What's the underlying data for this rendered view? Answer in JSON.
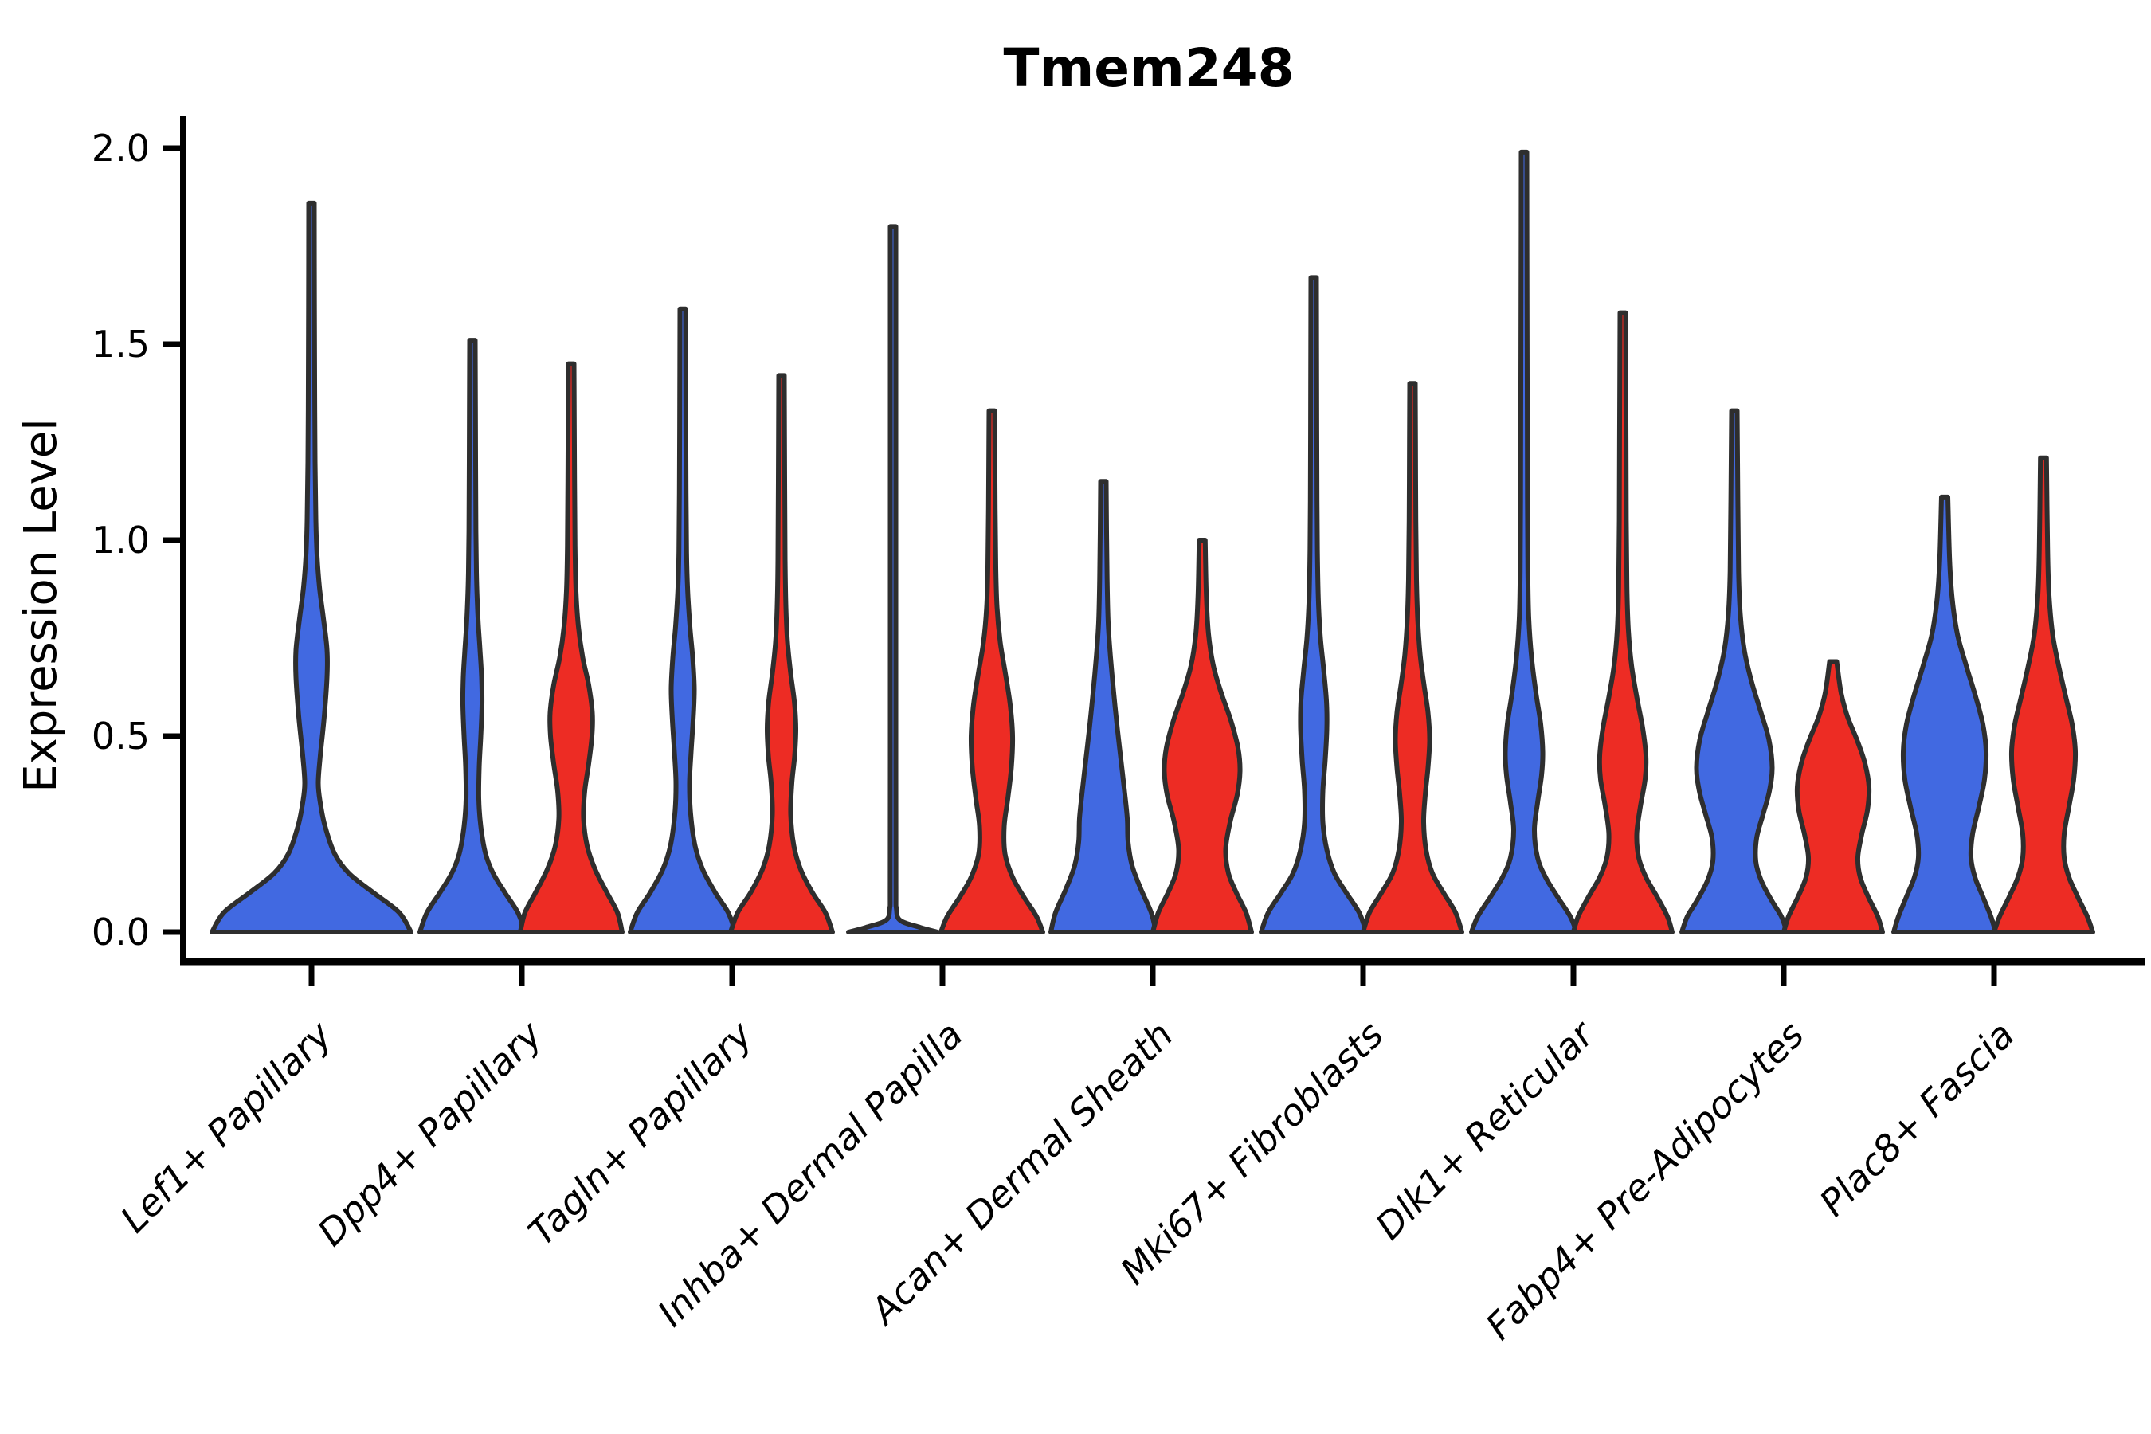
{
  "title": "Tmem248",
  "y_axis": {
    "label": "Expression Level"
  },
  "colors": {
    "blue": "#4169E1",
    "red": "#ED2C24",
    "outline": "#2E2E2E",
    "axis": "#000000"
  },
  "chart_data": {
    "type": "violin",
    "title": "Tmem248",
    "xlabel": "",
    "ylabel": "Expression Level",
    "ylim": [
      0.0,
      2.0
    ],
    "yticks": [
      0.0,
      0.5,
      1.0,
      1.5,
      2.0
    ],
    "grid": false,
    "legend": "none",
    "categories": [
      "Lef1+ Papillary",
      "Dpp4+ Papillary",
      "Tagln+ Papillary",
      "Inhba+ Dermal Papilla",
      "Acan+ Dermal Sheath",
      "Mki67+ Fibroblasts",
      "Dlk1+ Reticular",
      "Fabp4+ Pre-Adipocytes",
      "Plac8+ Fascia"
    ],
    "series_colors": {
      "blue": "#4169E1",
      "red": "#ED2C24"
    },
    "profile_units": "value_vs_halfwidth_px",
    "violins": [
      {
        "category": "Lef1+ Papillary",
        "series": "blue",
        "solo": true,
        "max_expression": 1.86,
        "profile": [
          [
            0,
            125
          ],
          [
            0.05,
            110
          ],
          [
            0.1,
            78
          ],
          [
            0.15,
            47
          ],
          [
            0.2,
            29
          ],
          [
            0.27,
            17
          ],
          [
            0.33,
            11
          ],
          [
            0.38,
            8.5
          ],
          [
            0.45,
            11
          ],
          [
            0.55,
            16
          ],
          [
            0.65,
            19.5
          ],
          [
            0.72,
            19.5
          ],
          [
            0.8,
            15
          ],
          [
            0.88,
            10
          ],
          [
            0.96,
            7
          ],
          [
            1.05,
            5.5
          ],
          [
            1.2,
            4.5
          ],
          [
            1.4,
            4
          ],
          [
            1.6,
            3.7
          ],
          [
            1.86,
            3.5
          ]
        ]
      },
      {
        "category": "Dpp4+ Papillary",
        "series": "blue",
        "solo": false,
        "max_expression": 1.51,
        "profile": [
          [
            0,
            66
          ],
          [
            0.05,
            57
          ],
          [
            0.1,
            41
          ],
          [
            0.15,
            26
          ],
          [
            0.2,
            16.5
          ],
          [
            0.27,
            10.5
          ],
          [
            0.34,
            8
          ],
          [
            0.42,
            8.5
          ],
          [
            0.5,
            10.5
          ],
          [
            0.58,
            12
          ],
          [
            0.65,
            11.5
          ],
          [
            0.72,
            9.5
          ],
          [
            0.8,
            7
          ],
          [
            0.9,
            5.2
          ],
          [
            1.02,
            4.4
          ],
          [
            1.2,
            4
          ],
          [
            1.51,
            3.5
          ]
        ]
      },
      {
        "category": "Dpp4+ Papillary",
        "series": "red",
        "solo": false,
        "max_expression": 1.45,
        "profile": [
          [
            0,
            64
          ],
          [
            0.05,
            58
          ],
          [
            0.1,
            45
          ],
          [
            0.16,
            30
          ],
          [
            0.22,
            20
          ],
          [
            0.29,
            15.5
          ],
          [
            0.36,
            17
          ],
          [
            0.43,
            22
          ],
          [
            0.5,
            26
          ],
          [
            0.56,
            26.5
          ],
          [
            0.63,
            22
          ],
          [
            0.7,
            14.5
          ],
          [
            0.78,
            9
          ],
          [
            0.87,
            6
          ],
          [
            0.98,
            4.8
          ],
          [
            1.15,
            4.2
          ],
          [
            1.45,
            3.5
          ]
        ]
      },
      {
        "category": "Tagln+ Papillary",
        "series": "blue",
        "solo": false,
        "max_expression": 1.59,
        "profile": [
          [
            0,
            66
          ],
          [
            0.05,
            57
          ],
          [
            0.1,
            41
          ],
          [
            0.16,
            25
          ],
          [
            0.22,
            15.5
          ],
          [
            0.3,
            10
          ],
          [
            0.38,
            8.5
          ],
          [
            0.46,
            10.5
          ],
          [
            0.54,
            13
          ],
          [
            0.62,
            14.5
          ],
          [
            0.7,
            12.5
          ],
          [
            0.78,
            9
          ],
          [
            0.87,
            6.2
          ],
          [
            0.97,
            4.8
          ],
          [
            1.12,
            4.2
          ],
          [
            1.35,
            3.8
          ],
          [
            1.59,
            3.5
          ]
        ]
      },
      {
        "category": "Tagln+ Papillary",
        "series": "red",
        "solo": false,
        "max_expression": 1.42,
        "profile": [
          [
            0,
            64
          ],
          [
            0.05,
            55
          ],
          [
            0.1,
            39
          ],
          [
            0.16,
            24
          ],
          [
            0.22,
            15.5
          ],
          [
            0.3,
            11.5
          ],
          [
            0.38,
            13
          ],
          [
            0.45,
            16.5
          ],
          [
            0.52,
            18
          ],
          [
            0.59,
            16
          ],
          [
            0.66,
            11.5
          ],
          [
            0.74,
            7.5
          ],
          [
            0.83,
            5.5
          ],
          [
            0.95,
            4.5
          ],
          [
            1.15,
            4
          ],
          [
            1.42,
            3.5
          ]
        ]
      },
      {
        "category": "Inhba+ Dermal Papilla",
        "series": "blue",
        "solo": false,
        "max_expression": 1.8,
        "profile": [
          [
            0,
            56
          ],
          [
            0.012,
            34
          ],
          [
            0.03,
            9
          ],
          [
            0.06,
            4.2
          ],
          [
            0.12,
            3.6
          ],
          [
            0.5,
            3.5
          ],
          [
            1.0,
            3.5
          ],
          [
            1.8,
            3.5
          ]
        ]
      },
      {
        "category": "Inhba+ Dermal Papilla",
        "series": "red",
        "solo": false,
        "max_expression": 1.33,
        "profile": [
          [
            0,
            64
          ],
          [
            0.04,
            56
          ],
          [
            0.09,
            40
          ],
          [
            0.14,
            26
          ],
          [
            0.2,
            16.5
          ],
          [
            0.27,
            15.5
          ],
          [
            0.34,
            20
          ],
          [
            0.42,
            24.5
          ],
          [
            0.5,
            26
          ],
          [
            0.58,
            23
          ],
          [
            0.66,
            17
          ],
          [
            0.74,
            10.5
          ],
          [
            0.83,
            6.5
          ],
          [
            0.93,
            5
          ],
          [
            1.08,
            4.2
          ],
          [
            1.33,
            3.5
          ]
        ]
      },
      {
        "category": "Acan+ Dermal Sheath",
        "series": "blue",
        "solo": false,
        "max_expression": 1.15,
        "profile": [
          [
            0,
            66
          ],
          [
            0.05,
            60
          ],
          [
            0.11,
            47
          ],
          [
            0.17,
            36
          ],
          [
            0.23,
            31
          ],
          [
            0.29,
            30
          ],
          [
            0.36,
            26.5
          ],
          [
            0.44,
            22
          ],
          [
            0.52,
            17.5
          ],
          [
            0.61,
            13
          ],
          [
            0.7,
            9
          ],
          [
            0.79,
            6
          ],
          [
            0.9,
            4.7
          ],
          [
            1.02,
            4
          ],
          [
            1.15,
            3.5
          ]
        ]
      },
      {
        "category": "Acan+ Dermal Sheath",
        "series": "red",
        "solo": false,
        "max_expression": 1.0,
        "profile": [
          [
            0,
            62
          ],
          [
            0.05,
            55
          ],
          [
            0.1,
            43
          ],
          [
            0.15,
            33
          ],
          [
            0.21,
            29.5
          ],
          [
            0.28,
            35
          ],
          [
            0.35,
            44
          ],
          [
            0.41,
            47.5
          ],
          [
            0.47,
            45
          ],
          [
            0.54,
            36
          ],
          [
            0.61,
            24
          ],
          [
            0.68,
            14
          ],
          [
            0.76,
            8
          ],
          [
            0.86,
            5.2
          ],
          [
            1.0,
            3.8
          ]
        ]
      },
      {
        "category": "Mki67+ Fibroblasts",
        "series": "blue",
        "solo": false,
        "max_expression": 1.67,
        "profile": [
          [
            0,
            66
          ],
          [
            0.05,
            57
          ],
          [
            0.1,
            41
          ],
          [
            0.15,
            26
          ],
          [
            0.21,
            16.5
          ],
          [
            0.28,
            11.5
          ],
          [
            0.36,
            11.5
          ],
          [
            0.44,
            14.5
          ],
          [
            0.52,
            16.5
          ],
          [
            0.59,
            16
          ],
          [
            0.67,
            12.5
          ],
          [
            0.75,
            8.5
          ],
          [
            0.84,
            6
          ],
          [
            0.95,
            4.8
          ],
          [
            1.1,
            4.2
          ],
          [
            1.4,
            3.8
          ],
          [
            1.67,
            3.5
          ]
        ]
      },
      {
        "category": "Mki67+ Fibroblasts",
        "series": "red",
        "solo": false,
        "max_expression": 1.4,
        "profile": [
          [
            0,
            62
          ],
          [
            0.05,
            54
          ],
          [
            0.1,
            39
          ],
          [
            0.15,
            25
          ],
          [
            0.21,
            17
          ],
          [
            0.28,
            14
          ],
          [
            0.35,
            16
          ],
          [
            0.42,
            19.5
          ],
          [
            0.49,
            21.5
          ],
          [
            0.56,
            19.5
          ],
          [
            0.63,
            14.5
          ],
          [
            0.71,
            9.5
          ],
          [
            0.8,
            6.5
          ],
          [
            0.9,
            5
          ],
          [
            1.05,
            4.2
          ],
          [
            1.25,
            3.8
          ],
          [
            1.4,
            3.5
          ]
        ]
      },
      {
        "category": "Dlk1+ Reticular",
        "series": "blue",
        "solo": false,
        "max_expression": 1.99,
        "profile": [
          [
            0,
            66
          ],
          [
            0.04,
            58
          ],
          [
            0.09,
            42
          ],
          [
            0.14,
            27
          ],
          [
            0.19,
            17
          ],
          [
            0.26,
            13
          ],
          [
            0.33,
            17
          ],
          [
            0.4,
            22
          ],
          [
            0.46,
            23.5
          ],
          [
            0.53,
            21
          ],
          [
            0.61,
            15
          ],
          [
            0.7,
            9.5
          ],
          [
            0.8,
            6
          ],
          [
            0.92,
            4.8
          ],
          [
            1.1,
            4.3
          ],
          [
            1.4,
            4
          ],
          [
            1.7,
            3.7
          ],
          [
            1.99,
            3.5
          ]
        ]
      },
      {
        "category": "Dlk1+ Reticular",
        "series": "red",
        "solo": false,
        "max_expression": 1.58,
        "profile": [
          [
            0,
            62
          ],
          [
            0.04,
            56
          ],
          [
            0.09,
            43
          ],
          [
            0.14,
            29
          ],
          [
            0.19,
            20
          ],
          [
            0.25,
            17.5
          ],
          [
            0.32,
            22
          ],
          [
            0.39,
            28
          ],
          [
            0.45,
            29
          ],
          [
            0.52,
            25
          ],
          [
            0.6,
            17.5
          ],
          [
            0.68,
            11
          ],
          [
            0.77,
            7
          ],
          [
            0.88,
            5.2
          ],
          [
            1.05,
            4.4
          ],
          [
            1.3,
            4
          ],
          [
            1.58,
            3.5
          ]
        ]
      },
      {
        "category": "Fabp4+ Pre-Adipocytes",
        "series": "blue",
        "solo": false,
        "max_expression": 1.33,
        "profile": [
          [
            0,
            66
          ],
          [
            0.04,
            59
          ],
          [
            0.08,
            47
          ],
          [
            0.13,
            34
          ],
          [
            0.18,
            27
          ],
          [
            0.24,
            28
          ],
          [
            0.3,
            36
          ],
          [
            0.36,
            44
          ],
          [
            0.42,
            47.5
          ],
          [
            0.49,
            43.5
          ],
          [
            0.56,
            33.5
          ],
          [
            0.64,
            21.5
          ],
          [
            0.72,
            12.5
          ],
          [
            0.81,
            7.5
          ],
          [
            0.92,
            5.3
          ],
          [
            1.1,
            4.4
          ],
          [
            1.33,
            3.5
          ]
        ]
      },
      {
        "category": "Fabp4+ Pre-Adipocytes",
        "series": "red",
        "solo": false,
        "max_expression": 0.69,
        "profile": [
          [
            0,
            62
          ],
          [
            0.04,
            56
          ],
          [
            0.09,
            44
          ],
          [
            0.14,
            34
          ],
          [
            0.19,
            31
          ],
          [
            0.25,
            36
          ],
          [
            0.31,
            43
          ],
          [
            0.37,
            45
          ],
          [
            0.43,
            40
          ],
          [
            0.49,
            30
          ],
          [
            0.55,
            18
          ],
          [
            0.61,
            10
          ],
          [
            0.69,
            4.5
          ]
        ]
      },
      {
        "category": "Plac8+ Fascia",
        "series": "blue",
        "solo": false,
        "max_expression": 1.11,
        "profile": [
          [
            0,
            64
          ],
          [
            0.04,
            58
          ],
          [
            0.09,
            48
          ],
          [
            0.14,
            38
          ],
          [
            0.19,
            33
          ],
          [
            0.25,
            35
          ],
          [
            0.32,
            43
          ],
          [
            0.39,
            50
          ],
          [
            0.46,
            52
          ],
          [
            0.53,
            48
          ],
          [
            0.6,
            39
          ],
          [
            0.68,
            27
          ],
          [
            0.76,
            16
          ],
          [
            0.85,
            9.5
          ],
          [
            0.95,
            6.2
          ],
          [
            1.11,
            4
          ]
        ]
      },
      {
        "category": "Plac8+ Fascia",
        "series": "red",
        "solo": false,
        "max_expression": 1.21,
        "profile": [
          [
            0,
            62
          ],
          [
            0.04,
            55
          ],
          [
            0.09,
            43
          ],
          [
            0.14,
            32
          ],
          [
            0.19,
            26
          ],
          [
            0.25,
            26
          ],
          [
            0.32,
            32
          ],
          [
            0.39,
            38
          ],
          [
            0.46,
            40
          ],
          [
            0.53,
            36
          ],
          [
            0.6,
            28
          ],
          [
            0.68,
            19
          ],
          [
            0.76,
            11.5
          ],
          [
            0.86,
            7
          ],
          [
            0.98,
            5.2
          ],
          [
            1.21,
            3.8
          ]
        ]
      }
    ]
  }
}
